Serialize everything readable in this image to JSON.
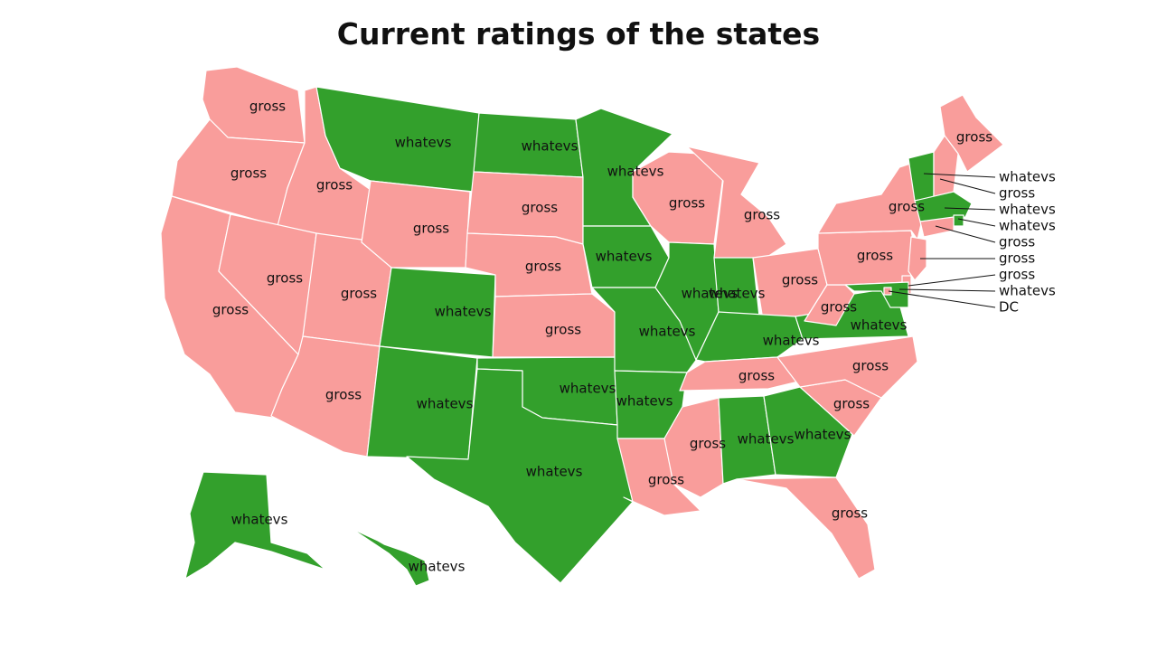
{
  "title": "Current ratings of the states",
  "colors": {
    "gross": "#f99d9b",
    "whatevs": "#33a02c"
  },
  "labels": {
    "gross": "gross",
    "whatevs": "whatevs",
    "dc": "DC"
  },
  "states": [
    {
      "id": "WA",
      "rating": "gross"
    },
    {
      "id": "OR",
      "rating": "gross"
    },
    {
      "id": "CA",
      "rating": "gross"
    },
    {
      "id": "ID",
      "rating": "gross"
    },
    {
      "id": "NV",
      "rating": "gross"
    },
    {
      "id": "UT",
      "rating": "gross"
    },
    {
      "id": "AZ",
      "rating": "gross"
    },
    {
      "id": "MT",
      "rating": "whatevs"
    },
    {
      "id": "WY",
      "rating": "gross"
    },
    {
      "id": "CO",
      "rating": "whatevs"
    },
    {
      "id": "NM",
      "rating": "whatevs"
    },
    {
      "id": "ND",
      "rating": "whatevs"
    },
    {
      "id": "SD",
      "rating": "gross"
    },
    {
      "id": "NE",
      "rating": "gross"
    },
    {
      "id": "KS",
      "rating": "gross"
    },
    {
      "id": "OK",
      "rating": "whatevs"
    },
    {
      "id": "TX",
      "rating": "whatevs"
    },
    {
      "id": "MN",
      "rating": "whatevs"
    },
    {
      "id": "IA",
      "rating": "whatevs"
    },
    {
      "id": "MO",
      "rating": "whatevs"
    },
    {
      "id": "AR",
      "rating": "whatevs"
    },
    {
      "id": "LA",
      "rating": "gross"
    },
    {
      "id": "WI",
      "rating": "gross"
    },
    {
      "id": "IL",
      "rating": "whatevs"
    },
    {
      "id": "MI",
      "rating": "gross"
    },
    {
      "id": "IN",
      "rating": "whatevs"
    },
    {
      "id": "OH",
      "rating": "gross"
    },
    {
      "id": "KY",
      "rating": "whatevs"
    },
    {
      "id": "TN",
      "rating": "gross"
    },
    {
      "id": "MS",
      "rating": "gross"
    },
    {
      "id": "AL",
      "rating": "whatevs"
    },
    {
      "id": "GA",
      "rating": "whatevs"
    },
    {
      "id": "FL",
      "rating": "gross"
    },
    {
      "id": "SC",
      "rating": "gross"
    },
    {
      "id": "NC",
      "rating": "gross"
    },
    {
      "id": "VA",
      "rating": "whatevs"
    },
    {
      "id": "WV",
      "rating": "gross"
    },
    {
      "id": "PA",
      "rating": "gross"
    },
    {
      "id": "NY",
      "rating": "gross"
    },
    {
      "id": "ME",
      "rating": "gross"
    },
    {
      "id": "AK",
      "rating": "whatevs"
    },
    {
      "id": "HI",
      "rating": "whatevs"
    },
    {
      "id": "VT",
      "rating": "whatevs"
    },
    {
      "id": "NH",
      "rating": "gross"
    },
    {
      "id": "MA",
      "rating": "whatevs"
    },
    {
      "id": "RI",
      "rating": "whatevs"
    },
    {
      "id": "CT",
      "rating": "gross"
    },
    {
      "id": "NJ",
      "rating": "gross"
    },
    {
      "id": "DE",
      "rating": "gross"
    },
    {
      "id": "MD",
      "rating": "whatevs"
    },
    {
      "id": "DC",
      "rating": "gross"
    }
  ],
  "callouts": [
    {
      "id": "VT",
      "rating": "whatevs"
    },
    {
      "id": "NH",
      "rating": "gross"
    },
    {
      "id": "MA",
      "rating": "whatevs"
    },
    {
      "id": "RI",
      "rating": "whatevs"
    },
    {
      "id": "CT",
      "rating": "gross"
    },
    {
      "id": "NJ",
      "rating": "gross"
    },
    {
      "id": "DE",
      "rating": "gross"
    },
    {
      "id": "MD",
      "rating": "whatevs"
    },
    {
      "id": "DC",
      "rating": "dc"
    }
  ]
}
